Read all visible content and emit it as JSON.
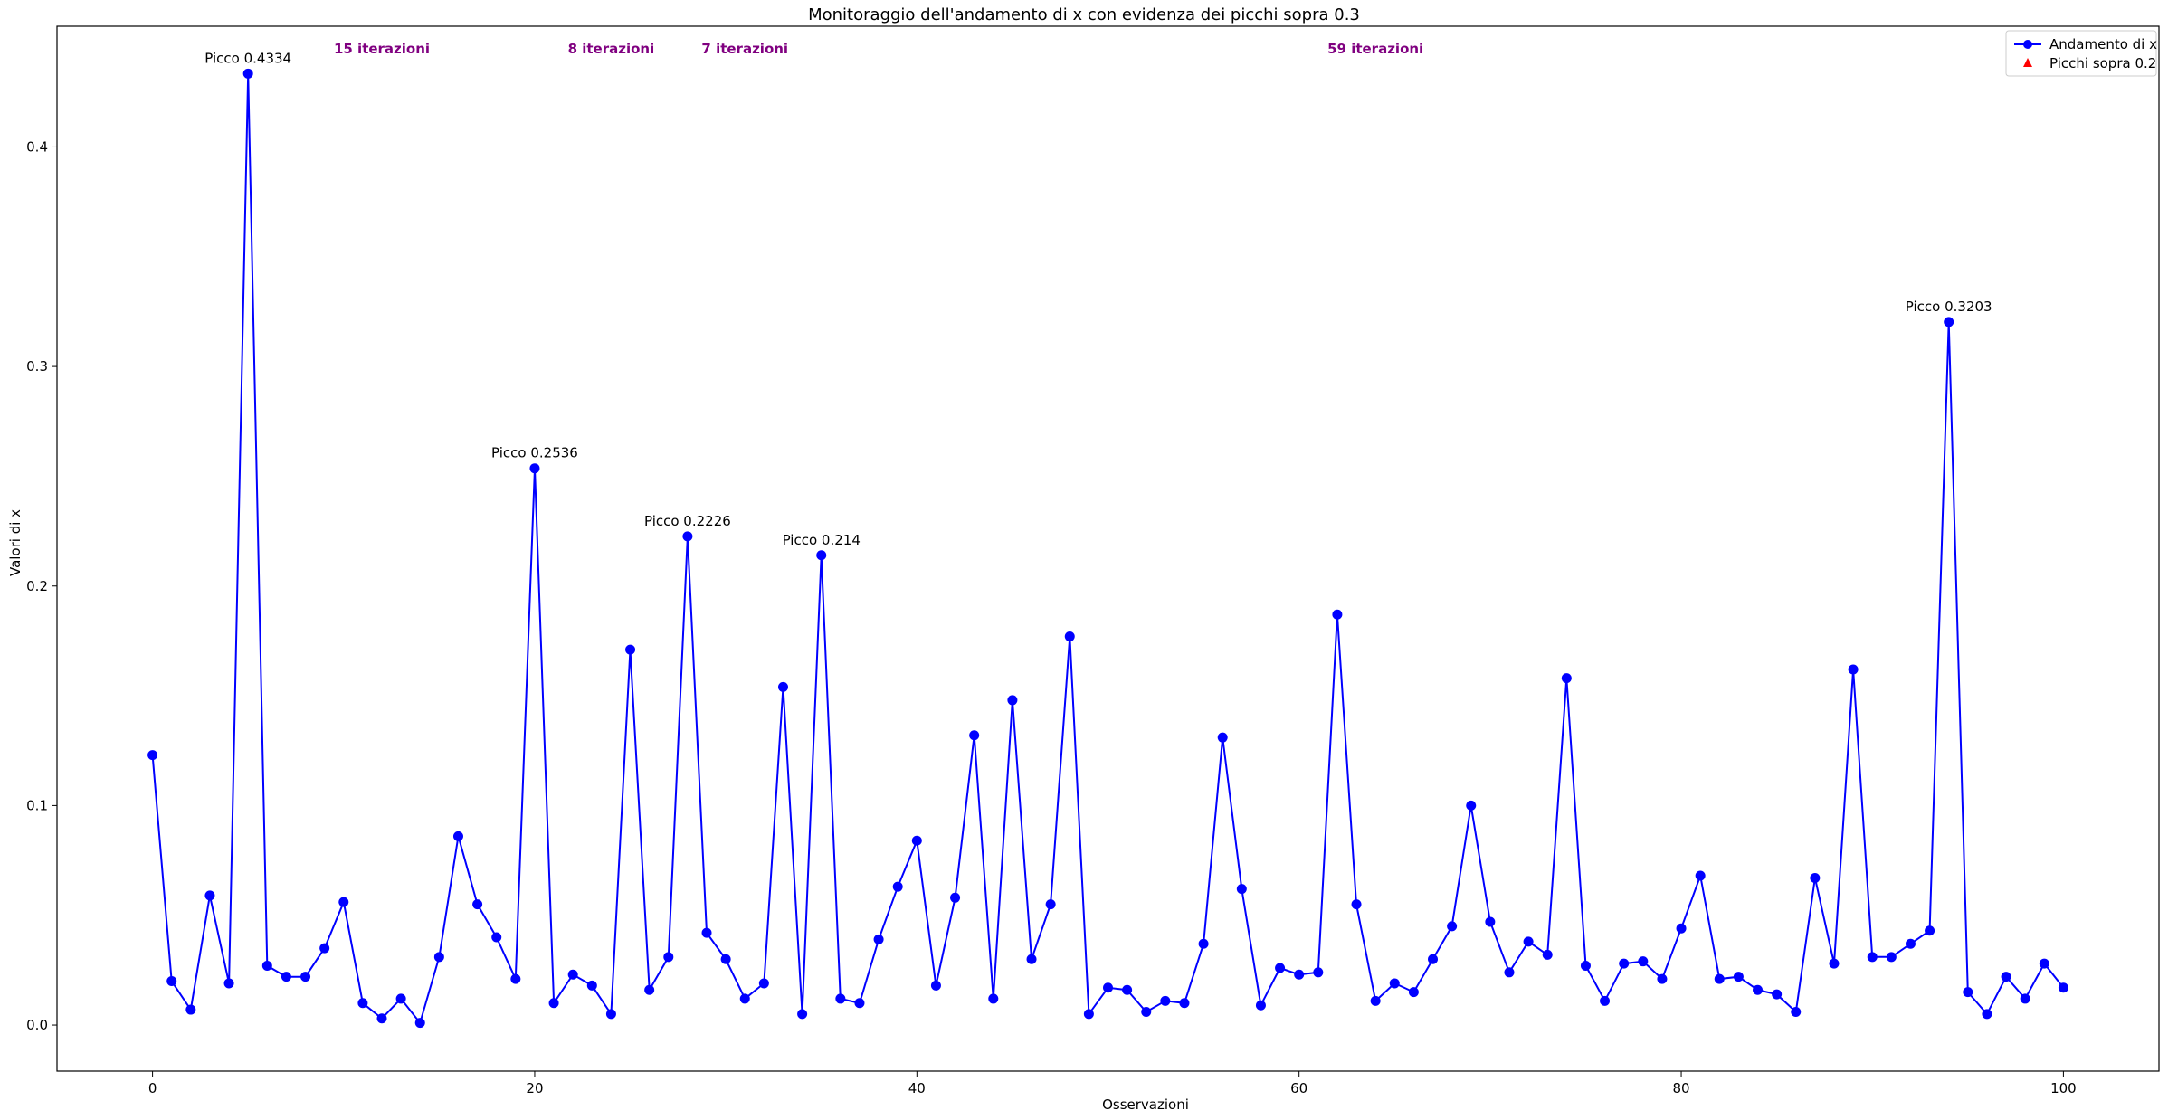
{
  "chart_data": {
    "type": "line",
    "title": "Monitoraggio dell'andamento di x con evidenza dei picchi sopra 0.3",
    "xlabel": "Osservazioni",
    "ylabel": "Valori di x",
    "xlim": [
      -5,
      105
    ],
    "ylim": [
      -0.021,
      0.455
    ],
    "xticks": [
      0,
      20,
      40,
      60,
      80,
      100
    ],
    "yticks": [
      0.0,
      0.1,
      0.2,
      0.3,
      0.4
    ],
    "ytick_labels": [
      "0.0",
      "0.1",
      "0.2",
      "0.3",
      "0.4"
    ],
    "grid": false,
    "legend_position": "top-right",
    "series": [
      {
        "name": "Andamento di x",
        "color": "#0000ff",
        "marker": "circle",
        "x": [
          0,
          1,
          2,
          3,
          4,
          5,
          6,
          7,
          8,
          9,
          10,
          11,
          12,
          13,
          14,
          15,
          16,
          17,
          18,
          19,
          20,
          21,
          22,
          23,
          24,
          25,
          26,
          27,
          28,
          29,
          30,
          31,
          32,
          33,
          34,
          35,
          36,
          37,
          38,
          39,
          40,
          41,
          42,
          43,
          44,
          45,
          46,
          47,
          48,
          49,
          50,
          51,
          52,
          53,
          54,
          55,
          56,
          57,
          58,
          59,
          60,
          61,
          62,
          63,
          64,
          65,
          66,
          67,
          68,
          69,
          70,
          71,
          72,
          73,
          74,
          75,
          76,
          77,
          78,
          79,
          80,
          81,
          82,
          83,
          84,
          85,
          86,
          87,
          88,
          89,
          90,
          91,
          92,
          93,
          94,
          95,
          96,
          97,
          98,
          99,
          100
        ],
        "values": [
          0.123,
          0.02,
          0.007,
          0.059,
          0.019,
          0.4334,
          0.027,
          0.022,
          0.022,
          0.035,
          0.056,
          0.01,
          0.003,
          0.012,
          0.001,
          0.031,
          0.086,
          0.055,
          0.04,
          0.021,
          0.2536,
          0.01,
          0.023,
          0.018,
          0.005,
          0.171,
          0.016,
          0.031,
          0.2226,
          0.042,
          0.03,
          0.012,
          0.019,
          0.154,
          0.005,
          0.214,
          0.012,
          0.01,
          0.039,
          0.063,
          0.084,
          0.018,
          0.058,
          0.132,
          0.012,
          0.148,
          0.03,
          0.055,
          0.177,
          0.005,
          0.017,
          0.016,
          0.006,
          0.011,
          0.01,
          0.037,
          0.131,
          0.062,
          0.009,
          0.026,
          0.023,
          0.024,
          0.187,
          0.055,
          0.011,
          0.019,
          0.015,
          0.03,
          0.045,
          0.1,
          0.047,
          0.024,
          0.038,
          0.032,
          0.158,
          0.027,
          0.011,
          0.028,
          0.029,
          0.021,
          0.044,
          0.068,
          0.021,
          0.022,
          0.016,
          0.014,
          0.006,
          0.067,
          0.028,
          0.162,
          0.031,
          0.031,
          0.037,
          0.043,
          0.3203,
          0.015,
          0.005,
          0.022,
          0.012,
          0.028,
          0.017
        ]
      },
      {
        "name": "Picchi sopra 0.2",
        "color": "#ff0000",
        "marker": "triangle",
        "x": [],
        "values": []
      }
    ],
    "annotations": [
      {
        "text": "Picco 0.4334",
        "x": 5,
        "y": 0.4334
      },
      {
        "text": "Picco 0.2536",
        "x": 20,
        "y": 0.2536
      },
      {
        "text": "Picco 0.2226",
        "x": 28,
        "y": 0.2226
      },
      {
        "text": "Picco 0.214",
        "x": 35,
        "y": 0.214
      },
      {
        "text": "Picco 0.3203",
        "x": 94,
        "y": 0.3203
      }
    ],
    "interval_labels": [
      {
        "text": "15 iterazioni",
        "x": 12
      },
      {
        "text": "8 iterazioni",
        "x": 24
      },
      {
        "text": "7 iterazioni",
        "x": 31
      },
      {
        "text": "59 iterazioni",
        "x": 64
      }
    ]
  }
}
